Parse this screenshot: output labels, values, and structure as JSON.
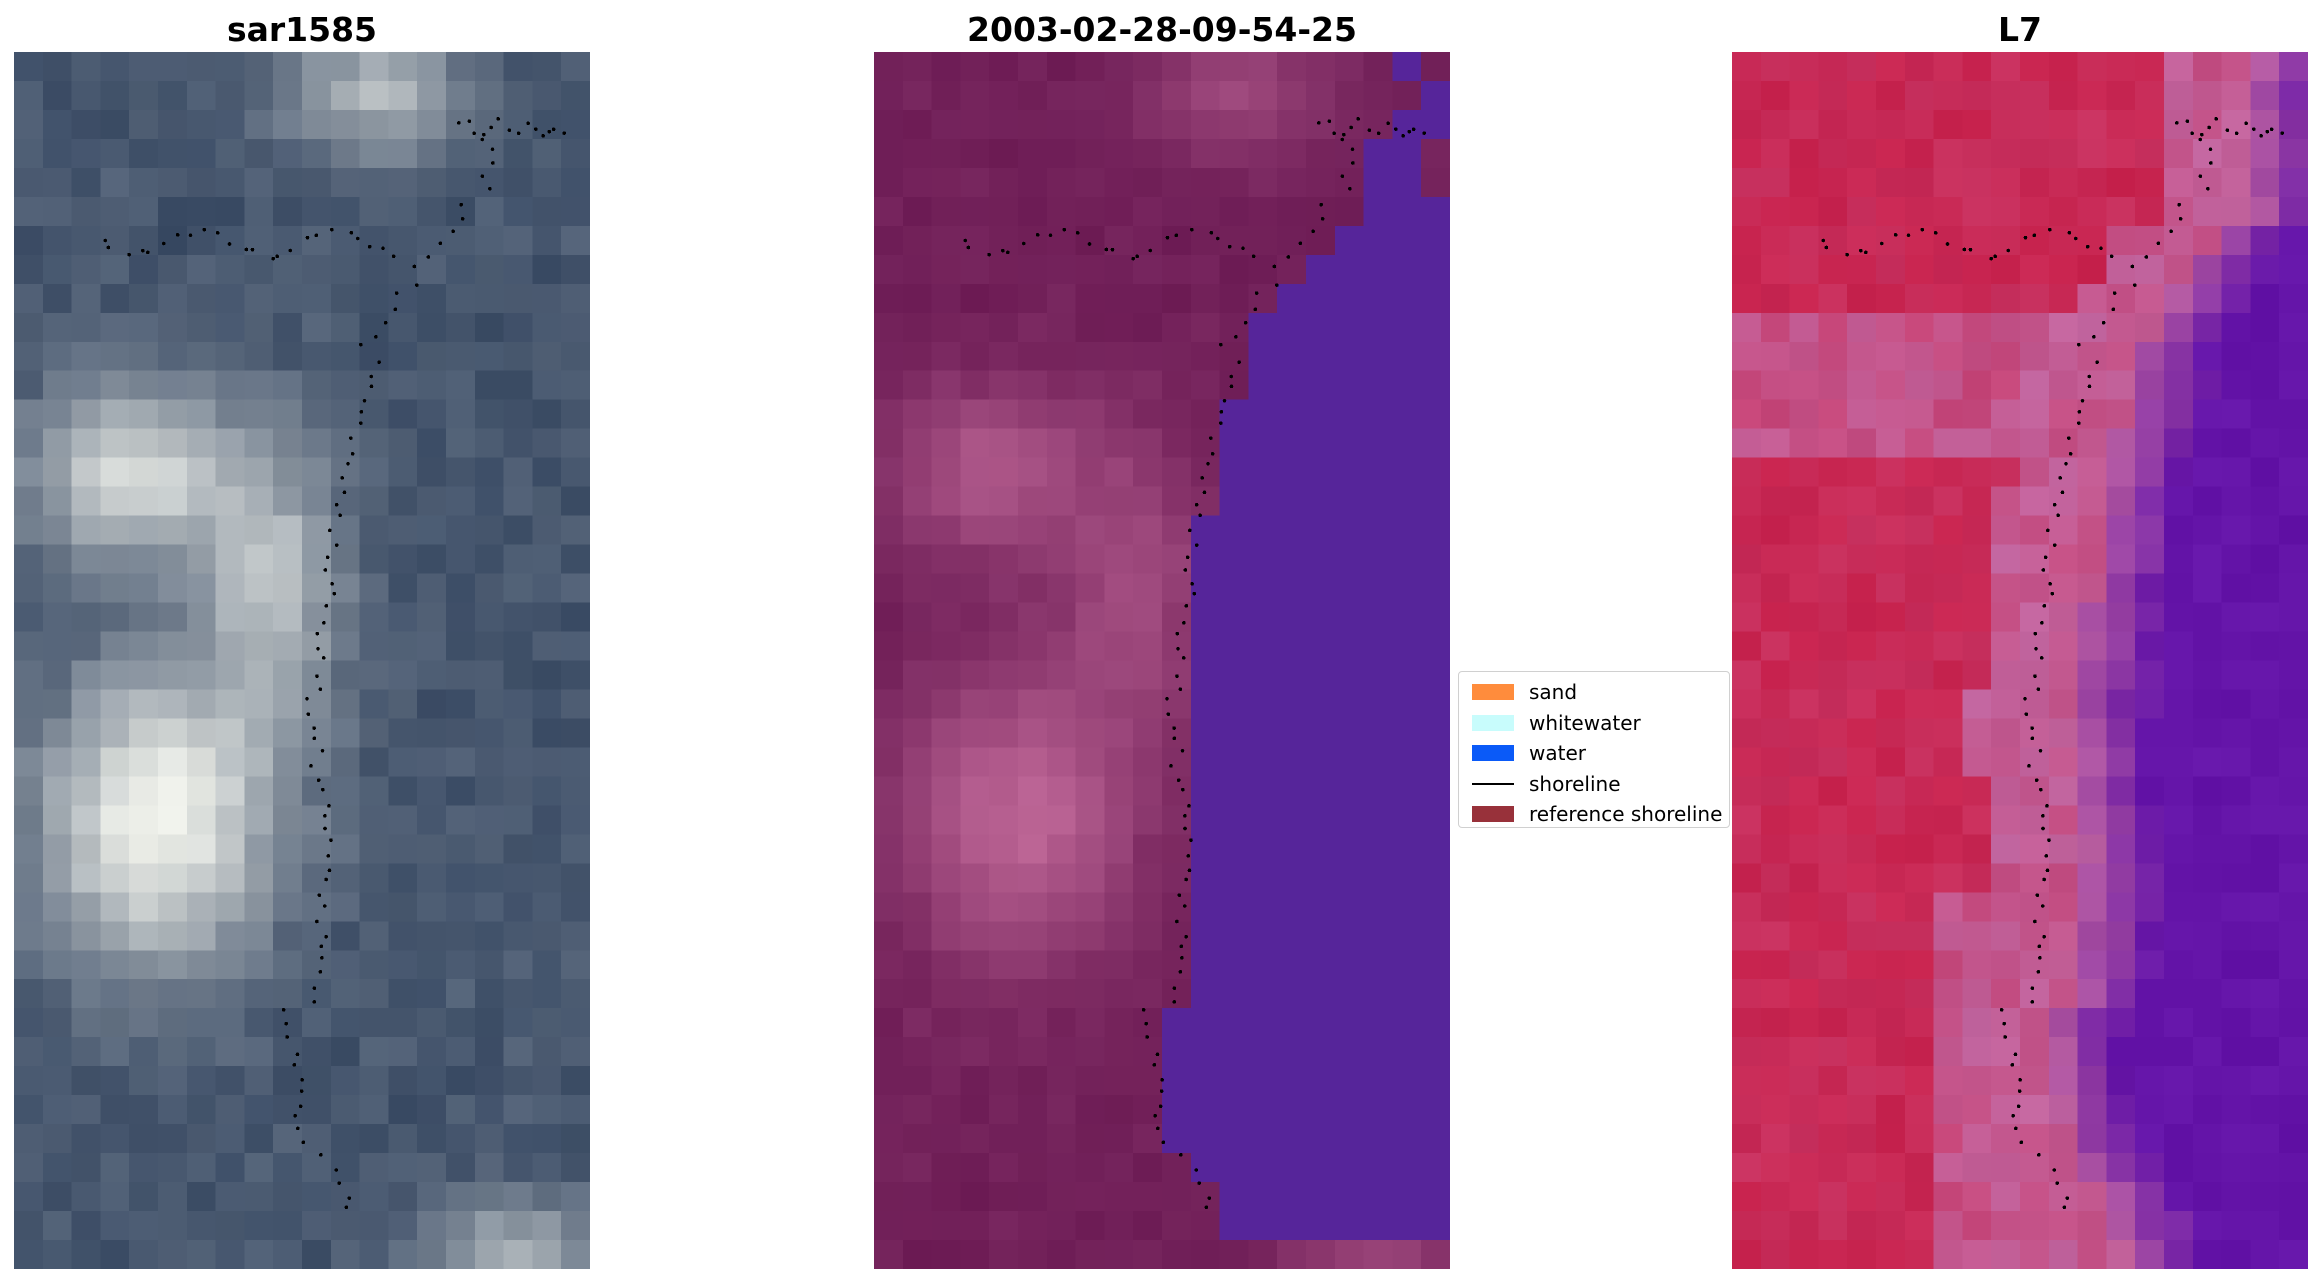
{
  "panels": [
    {
      "title": "sar1585",
      "kind": "rgb"
    },
    {
      "title": "2003-02-28-09-54-25",
      "kind": "classified"
    },
    {
      "title": "L7",
      "kind": "falsecolor"
    }
  ],
  "legend": {
    "items": [
      {
        "label": "sand",
        "color": "#ff8c3c",
        "kind": "patch"
      },
      {
        "label": "whitewater",
        "color": "#c8fcfc",
        "kind": "patch"
      },
      {
        "label": "water",
        "color": "#0a5af8",
        "kind": "patch"
      },
      {
        "label": "shoreline",
        "color": "#000000",
        "kind": "line"
      },
      {
        "label": "reference shoreline",
        "color": "#98313a",
        "kind": "patch"
      }
    ]
  },
  "colors": {
    "rgb_dark": "#3c4d66",
    "rgb_bright": "#eef0ea",
    "classified_land": "#6e1d56",
    "classified_bright": "#c06898",
    "classified_water": "#56259a",
    "falsecolor_land": "#c8234e",
    "falsecolor_pink": "#c266a0",
    "falsecolor_water": "#6414a8",
    "shoreline_dot": "#000000"
  }
}
